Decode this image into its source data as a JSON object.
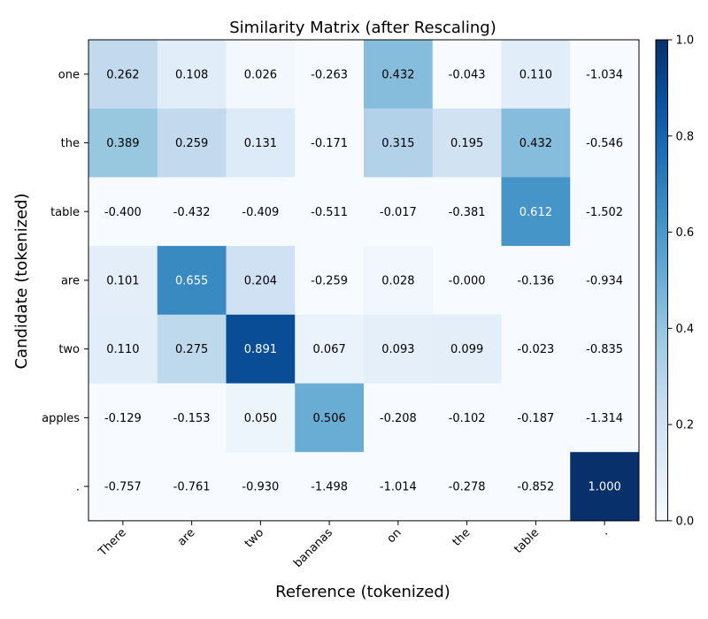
{
  "chart_data": {
    "type": "heatmap",
    "title": "Similarity Matrix (after Rescaling)",
    "xlabel": "Reference (tokenized)",
    "ylabel": "Candidate (tokenized)",
    "x_tokens": [
      "There",
      "are",
      "two",
      "bananas",
      "on",
      "the",
      "table",
      "."
    ],
    "y_tokens": [
      "one",
      "the",
      "table",
      "are",
      "two",
      "apples",
      "."
    ],
    "values": [
      [
        0.262,
        0.108,
        0.026,
        -0.263,
        0.432,
        -0.043,
        0.11,
        -1.034
      ],
      [
        0.389,
        0.259,
        0.131,
        -0.171,
        0.315,
        0.195,
        0.432,
        -0.546
      ],
      [
        -0.4,
        -0.432,
        -0.409,
        -0.511,
        -0.017,
        -0.381,
        0.612,
        -1.502
      ],
      [
        0.101,
        0.655,
        0.204,
        -0.259,
        0.028,
        -0.0,
        -0.136,
        -0.934
      ],
      [
        0.11,
        0.275,
        0.891,
        0.067,
        0.093,
        0.099,
        -0.023,
        -0.835
      ],
      [
        -0.129,
        -0.153,
        0.05,
        0.506,
        -0.208,
        -0.102,
        -0.187,
        -1.314
      ],
      [
        -0.757,
        -0.761,
        -0.93,
        -1.498,
        -1.014,
        -0.278,
        -0.852,
        1.0
      ]
    ],
    "value_labels": [
      [
        "0.262",
        "0.108",
        "0.026",
        "-0.263",
        "0.432",
        "-0.043",
        "0.110",
        "-1.034"
      ],
      [
        "0.389",
        "0.259",
        "0.131",
        "-0.171",
        "0.315",
        "0.195",
        "0.432",
        "-0.546"
      ],
      [
        "-0.400",
        "-0.432",
        "-0.409",
        "-0.511",
        "-0.017",
        "-0.381",
        "0.612",
        "-1.502"
      ],
      [
        "0.101",
        "0.655",
        "0.204",
        "-0.259",
        "0.028",
        "-0.000",
        "-0.136",
        "-0.934"
      ],
      [
        "0.110",
        "0.275",
        "0.891",
        "0.067",
        "0.093",
        "0.099",
        "-0.023",
        "-0.835"
      ],
      [
        "-0.129",
        "-0.153",
        "0.050",
        "0.506",
        "-0.208",
        "-0.102",
        "-0.187",
        "-1.314"
      ],
      [
        "-0.757",
        "-0.761",
        "-0.930",
        "-1.498",
        "-1.014",
        "-0.278",
        "-0.852",
        "1.000"
      ]
    ],
    "colormap": "Blues",
    "clim": [
      0.0,
      1.0
    ],
    "colorbar_ticks": [
      "0.0",
      "0.2",
      "0.4",
      "0.6",
      "0.8",
      "1.0"
    ],
    "colorbar_tick_values": [
      0.0,
      0.2,
      0.4,
      0.6,
      0.8,
      1.0
    ],
    "colors": {
      "low": "#f7fbff",
      "high": "#08306b",
      "text_dark": "#000000",
      "text_light": "#ffffff"
    },
    "legend": "colorbar-right",
    "grid": false
  }
}
